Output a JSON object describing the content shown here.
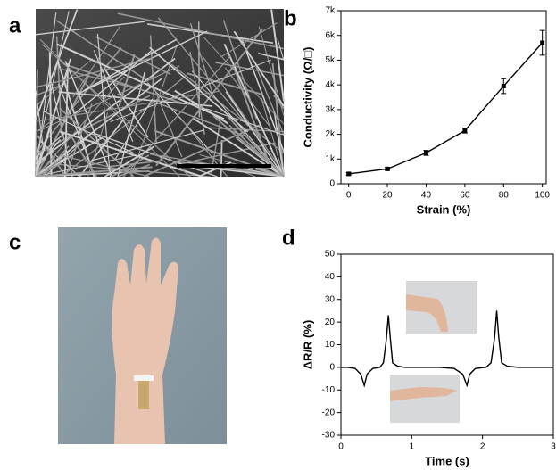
{
  "panels": [
    "a",
    "b",
    "c",
    "d"
  ],
  "chart_data": [
    {
      "type": "line",
      "x_label": "Strain (%)",
      "y_label": "Conductivity (Ω/□)",
      "x": [
        0,
        20,
        40,
        60,
        80,
        100
      ],
      "series": [
        {
          "color": "#000000",
          "values": [
            400,
            600,
            1250,
            2150,
            3950,
            5700
          ],
          "errors": [
            50,
            60,
            100,
            100,
            300,
            500
          ]
        }
      ],
      "xlim": [
        -4,
        102
      ],
      "xticks": [
        0,
        20,
        40,
        60,
        80,
        100
      ],
      "ylim": [
        0,
        7000
      ],
      "yticks": [
        0,
        {
          "value": 1000,
          "label": "1k"
        },
        {
          "value": 2000,
          "label": "2k"
        },
        {
          "value": 3000,
          "label": "3k"
        },
        {
          "value": 4000,
          "label": "4k"
        },
        {
          "value": 5000,
          "label": "5k"
        },
        {
          "value": 6000,
          "label": "6k"
        },
        {
          "value": 7000,
          "label": "7k"
        }
      ],
      "markers": true
    },
    {
      "type": "line",
      "x_label": "Time (s)",
      "y_label": "ΔR/R (%)",
      "x": [
        0,
        0.1,
        0.2,
        0.28,
        0.33,
        0.37,
        0.45,
        0.55,
        0.6,
        0.64,
        0.67,
        0.7,
        0.73,
        0.8,
        0.9,
        1.0,
        1.2,
        1.4,
        1.6,
        1.72,
        1.78,
        1.82,
        1.9,
        2.05,
        2.12,
        2.17,
        2.2,
        2.23,
        2.27,
        2.35,
        2.5,
        2.7,
        3.0
      ],
      "series": [
        {
          "color": "#000000",
          "values": [
            0,
            0,
            -0.5,
            -3,
            -8,
            -3,
            -0.5,
            0,
            2,
            12,
            23,
            12,
            2,
            0.5,
            0,
            0,
            0,
            0,
            -0.5,
            -3,
            -8,
            -3,
            -0.5,
            0,
            2,
            13,
            25,
            13,
            2,
            0.5,
            0,
            0,
            0
          ]
        }
      ],
      "xlim": [
        0,
        3
      ],
      "xticks": [
        0,
        1,
        2,
        3
      ],
      "ylim": [
        -30,
        50
      ],
      "yticks": [
        -30,
        -20,
        -10,
        0,
        10,
        20,
        30,
        40,
        50
      ],
      "markers": false
    }
  ]
}
